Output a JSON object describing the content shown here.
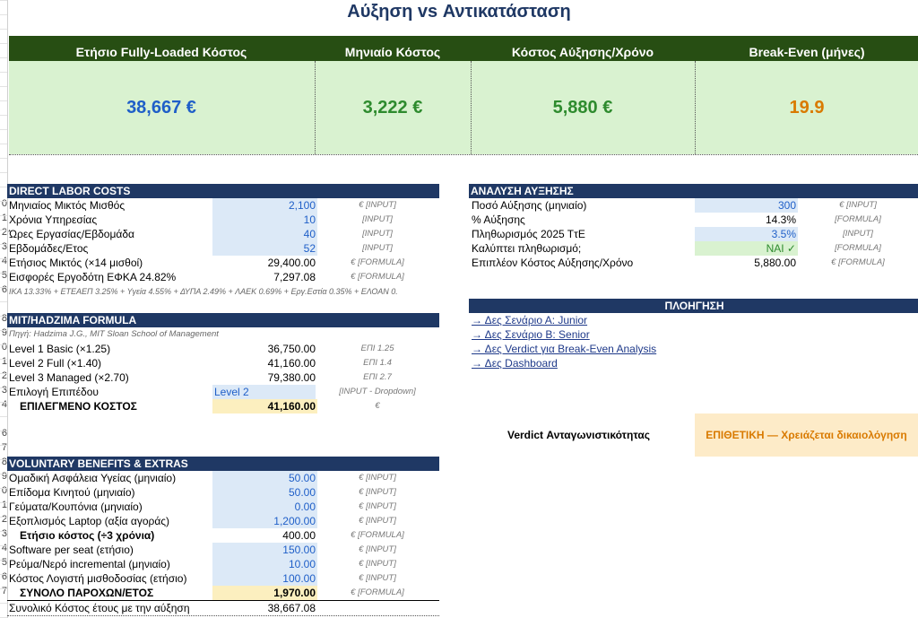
{
  "title": "Αύξηση vs Αντικατάσταση",
  "kpis": [
    {
      "label": "Ετήσιο Fully-Loaded Κόστος",
      "value": "38,667 €",
      "color": "#1f5fc8"
    },
    {
      "label": "Μηνιαίο Κόστος",
      "value": "3,222 €",
      "color": "#2e8b2e"
    },
    {
      "label": "Κόστος Αύξησης/Χρόνο",
      "value": "5,880 €",
      "color": "#2e8b2e"
    },
    {
      "label": "Break-Even (μήνες)",
      "value": "19.9",
      "color": "#d97a00"
    }
  ],
  "row_numbers": [
    "0",
    "1",
    "2",
    "3",
    "4",
    "5",
    "6",
    "",
    "8",
    "9",
    "0",
    "1",
    "2",
    "3",
    "4",
    "",
    "6",
    "7",
    "8",
    "9",
    "0",
    "1",
    "2",
    "3",
    "4",
    "5",
    "6",
    "7"
  ],
  "direct": {
    "header": "DIRECT LABOR COSTS",
    "rows": [
      {
        "label": "Μηνιαίος Μικτός Μισθός",
        "value": "2,100",
        "note": "€ [INPUT]"
      },
      {
        "label": "Χρόνια Υπηρεσίας",
        "value": "10",
        "note": "[INPUT]"
      },
      {
        "label": "Ώρες Εργασίας/Εβδομάδα",
        "value": "40",
        "note": "[INPUT]"
      },
      {
        "label": "Εβδομάδες/Ετος",
        "value": "52",
        "note": "[INPUT]"
      },
      {
        "label": "Ετήσιος Μικτός (×14 μισθοί)",
        "value": "29,400.00",
        "note": "€ [FORMULA]"
      },
      {
        "label": "Εισφορές Εργοδότη ΕΦΚΑ 24.82%",
        "value": "7,297.08",
        "note": "€ [FORMULA]"
      }
    ],
    "footnote": "ΙΚΑ 13.33% + ΕΤΕΑΕΠ 3.25% + Υγεία 4.55% + ΔΥΠΑ 2.49% + ΛΑΕΚ 0.69% + Εργ.Εστία 0.35% + ΕΛΟΑΝ 0."
  },
  "mit": {
    "header": "MIT/HADZIMA FORMULA",
    "source": "Πηγή: Hadzima J.G., MIT Sloan School of Management",
    "rows": [
      {
        "label": "Level 1 Basic (×1.25)",
        "value": "36,750.00",
        "note": "ΕΠΙ 1.25"
      },
      {
        "label": "Level 2 Full (×1.40)",
        "value": "41,160.00",
        "note": "ΕΠΙ 1.4"
      },
      {
        "label": "Level 3 Managed (×2.70)",
        "value": "79,380.00",
        "note": "ΕΠΙ 2.7"
      }
    ],
    "choice_label": "Επιλογή Επιπέδου",
    "choice_value": "Level 2",
    "choice_note": "[INPUT - Dropdown]",
    "selected_label": "ΕΠΙΛΕΓΜΕΝΟ ΚΟΣΤΟΣ",
    "selected_value": "41,160.00",
    "selected_note": "€"
  },
  "benefits": {
    "header": "VOLUNTARY BENEFITS & EXTRAS",
    "rows": [
      {
        "label": "Ομαδική Ασφάλεια Υγείας (μηνιαίο)",
        "value": "50.00",
        "note": "€ [INPUT]",
        "type": "input"
      },
      {
        "label": "Επίδομα Κινητού (μηνιαίο)",
        "value": "50.00",
        "note": "€ [INPUT]",
        "type": "input"
      },
      {
        "label": "Γεύματα/Κουπόνια (μηνιαίο)",
        "value": "0.00",
        "note": "€ [INPUT]",
        "type": "input"
      },
      {
        "label": "Εξοπλισμός Laptop (αξία αγοράς)",
        "value": "1,200.00",
        "note": "€ [INPUT]",
        "type": "input"
      },
      {
        "label": "Ετήσιο κόστος (÷3 χρόνια)",
        "value": "400.00",
        "note": "€ [FORMULA]",
        "type": "formula-bold"
      },
      {
        "label": "Software per seat (ετήσιο)",
        "value": "150.00",
        "note": "€ [INPUT]",
        "type": "input"
      },
      {
        "label": "Ρεύμα/Νερό incremental (μηνιαίο)",
        "value": "10.00",
        "note": "€ [INPUT]",
        "type": "input"
      },
      {
        "label": "Κόστος Λογιστή μισθοδοσίας (ετήσιο)",
        "value": "100.00",
        "note": "€ [INPUT]",
        "type": "input"
      }
    ],
    "total_label": "ΣΥΝΟΛΟ ΠΑΡΟΧΩΝ/ΕΤΟΣ",
    "total_value": "1,970.00",
    "total_note": "€ [FORMULA]",
    "grand_label": "Συνολικό Κόστος έτους με την αύξηση",
    "grand_value": "38,667.08"
  },
  "raise": {
    "header": "ΑΝΑΛΥΣΗ ΑΥΞΗΣΗΣ",
    "rows": [
      {
        "label": "Ποσό Αύξησης (μηνιαίο)",
        "value": "300",
        "note": "€ [INPUT]",
        "type": "input"
      },
      {
        "label": "% Αύξησης",
        "value": "14.3%",
        "note": "[FORMULA]",
        "type": "plain"
      },
      {
        "label": "Πληθωρισμός 2025 ΤτΕ",
        "value": "3.5%",
        "note": "[INPUT]",
        "type": "input"
      },
      {
        "label": "Καλύπτει πληθωρισμό;",
        "value": "ΝΑΙ ✓",
        "note": "[FORMULA]",
        "type": "ok"
      },
      {
        "label": "Επιπλέον Κόστος Αύξησης/Χρόνο",
        "value": "5,880.00",
        "note": "€ [FORMULA]",
        "type": "plain"
      }
    ]
  },
  "nav": {
    "header": "ΠΛΟΗΓΗΣΗ",
    "links": [
      "→ Δες Σενάριο Α: Junior",
      "→ Δες Σενάριο Β: Senior",
      "→ Δες Verdict για Break-Even Analysis",
      "→ Δες Dashboard"
    ]
  },
  "verdict": {
    "label": "Verdict Ανταγωνιστικότητας",
    "value": "ΕΠΙΘΕΤΙΚΗ — Χρειάζεται δικαιολόγηση"
  }
}
